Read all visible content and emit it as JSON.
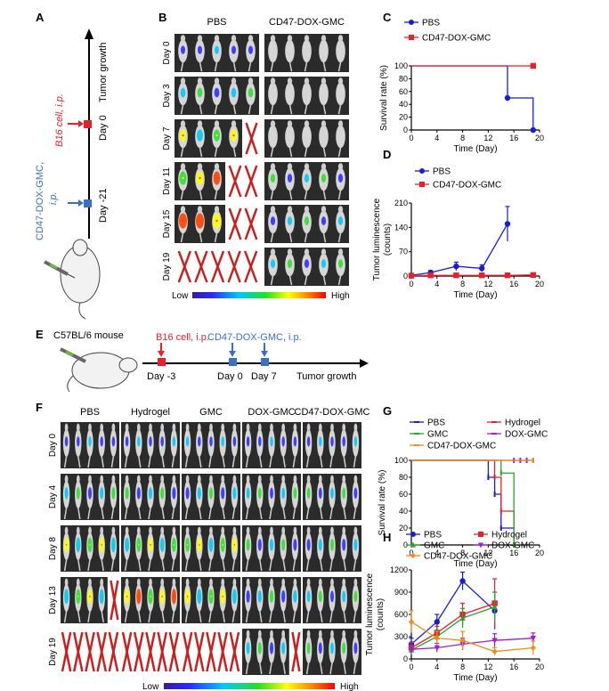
{
  "panels": {
    "A": {
      "letter": "A",
      "axis_label": "Tumor growth",
      "day0": "Day 0",
      "day_m21": "Day -21",
      "b16": "B16 cell, i.p.",
      "gmc_line1": "CD47-DOX-GMC,",
      "gmc_line2": "i.p."
    },
    "B": {
      "letter": "B",
      "groups": [
        "PBS",
        "CD47-DOX-GMC"
      ],
      "days": [
        "Day 0",
        "Day 3",
        "Day 7",
        "Day 11",
        "Day 15",
        "Day 19"
      ],
      "low": "Low",
      "high": "High",
      "pbs_alive": [
        5,
        5,
        4,
        3,
        3,
        0
      ]
    },
    "E": {
      "letter": "E",
      "mouse": "C57BL/6 mouse",
      "b16": "B16 cell, i.p.",
      "gmc": "CD47-DOX-GMC, i.p.",
      "ticks": [
        "Day -3",
        "Day 0",
        "Day 7"
      ],
      "growth": "Tumor growth"
    },
    "F": {
      "letter": "F",
      "groups": [
        "PBS",
        "Hydrogel",
        "GMC",
        "DOX-GMC",
        "CD47-DOX-GMC"
      ],
      "days": [
        "Day 0",
        "Day 4",
        "Day 8",
        "Day 13",
        "Day 19"
      ],
      "low": "Low",
      "high": "High",
      "alive": [
        [
          5,
          5,
          5,
          5,
          5
        ],
        [
          5,
          5,
          5,
          5,
          5
        ],
        [
          5,
          5,
          5,
          5,
          5
        ],
        [
          4,
          5,
          5,
          5,
          5
        ],
        [
          0,
          0,
          0,
          4,
          5
        ]
      ]
    }
  },
  "chart_data": [
    {
      "id": "C",
      "letter": "C",
      "type": "line",
      "xlabel": "Time (Day)",
      "ylabel": "Survival rate (%)",
      "xlim": [
        0,
        20
      ],
      "ylim": [
        0,
        100
      ],
      "xticks": [
        0,
        4,
        8,
        12,
        16,
        20
      ],
      "yticks": [
        0,
        20,
        40,
        60,
        80,
        100
      ],
      "series": [
        {
          "name": "PBS",
          "color": "#1b1bd6",
          "marker": "circle",
          "step": true,
          "x": [
            0,
            15,
            19
          ],
          "y": [
            100,
            50,
            0
          ]
        },
        {
          "name": "CD47-DOX-GMC",
          "color": "#e8202a",
          "marker": "square",
          "step": true,
          "x": [
            0,
            19
          ],
          "y": [
            100,
            100
          ]
        }
      ]
    },
    {
      "id": "D",
      "letter": "D",
      "type": "line",
      "xlabel": "Time (Day)",
      "ylabel": "Tumor luminescence (counts)",
      "xlim": [
        0,
        20
      ],
      "ylim": [
        0,
        210
      ],
      "xticks": [
        0,
        4,
        8,
        12,
        16,
        20
      ],
      "yticks": [
        0,
        70,
        140,
        210
      ],
      "series": [
        {
          "name": "PBS",
          "color": "#1b1bd6",
          "marker": "circle",
          "x": [
            0,
            3,
            7,
            11,
            15
          ],
          "y": [
            2,
            10,
            28,
            22,
            150
          ],
          "err": [
            1,
            6,
            12,
            10,
            50
          ]
        },
        {
          "name": "CD47-DOX-GMC",
          "color": "#e8202a",
          "marker": "square",
          "x": [
            0,
            3,
            7,
            11,
            15,
            19
          ],
          "y": [
            1,
            2,
            2,
            2,
            2,
            3
          ],
          "err": [
            0.5,
            1,
            1,
            1,
            1,
            1
          ]
        }
      ]
    },
    {
      "id": "G",
      "letter": "G",
      "type": "line",
      "xlabel": "Time (Day)",
      "ylabel": "Survival rate (%)",
      "xlim": [
        0,
        20
      ],
      "ylim": [
        0,
        100
      ],
      "xticks": [
        0,
        4,
        8,
        12,
        16,
        20
      ],
      "yticks": [
        0,
        20,
        40,
        60,
        80,
        100
      ],
      "series": [
        {
          "name": "PBS",
          "color": "#1b1bd6",
          "marker": "dash",
          "step": true,
          "x": [
            0,
            12,
            13,
            14,
            16
          ],
          "y": [
            100,
            80,
            60,
            20,
            0
          ]
        },
        {
          "name": "Hydrogel",
          "color": "#e8202a",
          "marker": "dash",
          "step": true,
          "x": [
            0,
            13,
            14,
            16
          ],
          "y": [
            100,
            80,
            40,
            0
          ]
        },
        {
          "name": "GMC",
          "color": "#2ca02c",
          "marker": "dash",
          "step": true,
          "x": [
            0,
            14,
            16
          ],
          "y": [
            100,
            85,
            0
          ]
        },
        {
          "name": "DOX-GMC",
          "color": "#a020c8",
          "marker": "dash",
          "step": true,
          "x": [
            0,
            16,
            17,
            18,
            19
          ],
          "y": [
            100,
            100,
            100,
            100,
            100
          ]
        },
        {
          "name": "CD47-DOX-GMC",
          "color": "#f08c1a",
          "marker": "dash",
          "step": true,
          "x": [
            0,
            19
          ],
          "y": [
            100,
            100
          ]
        }
      ]
    },
    {
      "id": "H",
      "letter": "H",
      "type": "line",
      "xlabel": "Time (Day)",
      "ylabel": "Tumor luminescence (counts)",
      "xlim": [
        0,
        20
      ],
      "ylim": [
        0,
        1200
      ],
      "xticks": [
        0,
        4,
        8,
        12,
        16,
        20
      ],
      "yticks": [
        0,
        300,
        600,
        900,
        1200
      ],
      "series": [
        {
          "name": "PBS",
          "color": "#1b1bd6",
          "marker": "circle",
          "x": [
            0,
            4,
            8,
            13
          ],
          "y": [
            200,
            500,
            1050,
            650
          ],
          "err": [
            80,
            100,
            120,
            250
          ]
        },
        {
          "name": "Hydrogel",
          "color": "#e8202a",
          "marker": "square",
          "x": [
            0,
            4,
            8,
            13
          ],
          "y": [
            150,
            350,
            600,
            750
          ],
          "err": [
            70,
            90,
            150,
            330
          ]
        },
        {
          "name": "GMC",
          "color": "#2ca02c",
          "marker": "triangle",
          "x": [
            0,
            4,
            8,
            13
          ],
          "y": [
            120,
            300,
            550,
            700
          ],
          "err": [
            60,
            90,
            130,
            200
          ]
        },
        {
          "name": "DOX-GMC",
          "color": "#a020c8",
          "marker": "triangle-down",
          "x": [
            0,
            4,
            8,
            13,
            19
          ],
          "y": [
            130,
            150,
            200,
            250,
            280
          ],
          "err": [
            50,
            60,
            80,
            90,
            70
          ]
        },
        {
          "name": "CD47-DOX-GMC",
          "color": "#f08c1a",
          "marker": "diamond",
          "x": [
            0,
            4,
            8,
            13,
            19
          ],
          "y": [
            500,
            280,
            250,
            100,
            150
          ],
          "err": [
            150,
            90,
            120,
            50,
            90
          ]
        }
      ]
    }
  ]
}
